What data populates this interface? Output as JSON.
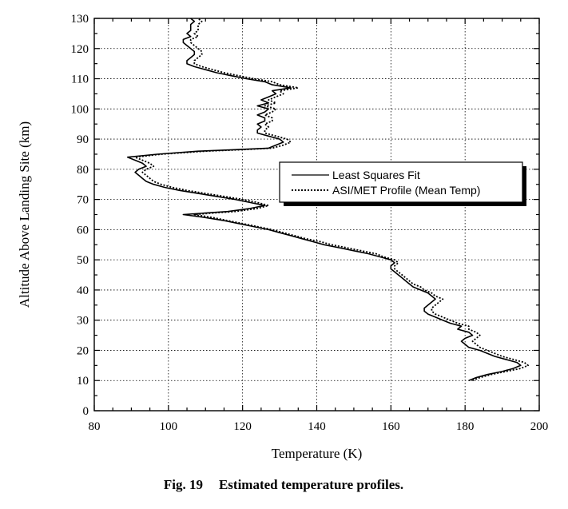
{
  "chart_data": {
    "type": "line",
    "title": "",
    "xlabel": "Temperature (K)",
    "ylabel": "Altitude Above Landing Site (km)",
    "xlim": [
      80,
      200
    ],
    "ylim": [
      0,
      130
    ],
    "x_ticks": [
      80,
      100,
      120,
      140,
      160,
      180,
      200
    ],
    "y_ticks": [
      0,
      10,
      20,
      30,
      40,
      50,
      60,
      70,
      80,
      90,
      100,
      110,
      120,
      130
    ],
    "grid": true,
    "legend_position": "center-right",
    "series": [
      {
        "name": "Least Squares Fit",
        "style": "solid",
        "color": "#000000",
        "points": [
          [
            181,
            10
          ],
          [
            183,
            11
          ],
          [
            186,
            12
          ],
          [
            190,
            13
          ],
          [
            193,
            14
          ],
          [
            195,
            15
          ],
          [
            194,
            16
          ],
          [
            191,
            17
          ],
          [
            188,
            18
          ],
          [
            186,
            19
          ],
          [
            184,
            20
          ],
          [
            181,
            21
          ],
          [
            180,
            22
          ],
          [
            179,
            23
          ],
          [
            180,
            24
          ],
          [
            182,
            25
          ],
          [
            181,
            26
          ],
          [
            178,
            27
          ],
          [
            179,
            28
          ],
          [
            176,
            29
          ],
          [
            174,
            30
          ],
          [
            172,
            31
          ],
          [
            170,
            32
          ],
          [
            169,
            33
          ],
          [
            169,
            34
          ],
          [
            170,
            35
          ],
          [
            171,
            36
          ],
          [
            172,
            37
          ],
          [
            171,
            38
          ],
          [
            170,
            39
          ],
          [
            168,
            40
          ],
          [
            166,
            41
          ],
          [
            165,
            42
          ],
          [
            164,
            43
          ],
          [
            163,
            44
          ],
          [
            162,
            45
          ],
          [
            161,
            46
          ],
          [
            160,
            47
          ],
          [
            160,
            48
          ],
          [
            161,
            49
          ],
          [
            160,
            50
          ],
          [
            157,
            51
          ],
          [
            154,
            52
          ],
          [
            150,
            53
          ],
          [
            146,
            54
          ],
          [
            142,
            55
          ],
          [
            139,
            56
          ],
          [
            136,
            57
          ],
          [
            133,
            58
          ],
          [
            130,
            59
          ],
          [
            127,
            60
          ],
          [
            123,
            61
          ],
          [
            119,
            62
          ],
          [
            115,
            63
          ],
          [
            110,
            64
          ],
          [
            104,
            65
          ],
          [
            110,
            65.5
          ],
          [
            116,
            66
          ],
          [
            122,
            67
          ],
          [
            126,
            68
          ],
          [
            122,
            69
          ],
          [
            118,
            70
          ],
          [
            113,
            71
          ],
          [
            108,
            72
          ],
          [
            103,
            73
          ],
          [
            99,
            74
          ],
          [
            96,
            75
          ],
          [
            94,
            76
          ],
          [
            93,
            77
          ],
          [
            92,
            78
          ],
          [
            91,
            79
          ],
          [
            92,
            80
          ],
          [
            94,
            81
          ],
          [
            93,
            82
          ],
          [
            91,
            83
          ],
          [
            89,
            84
          ],
          [
            97,
            85
          ],
          [
            108,
            86
          ],
          [
            118,
            86.5
          ],
          [
            127,
            87
          ],
          [
            129,
            88
          ],
          [
            131,
            89
          ],
          [
            130,
            90
          ],
          [
            127,
            91
          ],
          [
            124,
            92
          ],
          [
            124,
            93
          ],
          [
            125,
            94
          ],
          [
            124,
            95
          ],
          [
            126,
            96
          ],
          [
            126,
            97
          ],
          [
            124,
            98
          ],
          [
            126,
            99
          ],
          [
            127,
            100
          ],
          [
            124,
            101
          ],
          [
            127,
            102
          ],
          [
            125,
            103
          ],
          [
            127,
            104
          ],
          [
            129,
            105
          ],
          [
            128,
            106
          ],
          [
            133,
            107
          ],
          [
            128,
            108
          ],
          [
            126,
            109
          ],
          [
            121,
            110
          ],
          [
            117,
            111
          ],
          [
            113,
            112
          ],
          [
            110,
            113
          ],
          [
            107,
            114
          ],
          [
            105,
            115
          ],
          [
            105,
            116
          ],
          [
            106,
            117
          ],
          [
            107,
            118
          ],
          [
            107,
            119
          ],
          [
            106,
            120
          ],
          [
            105,
            121
          ],
          [
            104,
            122
          ],
          [
            104,
            123
          ],
          [
            106,
            124
          ],
          [
            105,
            125
          ],
          [
            106,
            126
          ],
          [
            106,
            127
          ],
          [
            106,
            128
          ],
          [
            107,
            129
          ],
          [
            106,
            130
          ]
        ]
      },
      {
        "name": "ASI/MET Profile (Mean Temp)",
        "style": "dotted",
        "color": "#000000",
        "points": [
          [
            182,
            10
          ],
          [
            184,
            11
          ],
          [
            187,
            12
          ],
          [
            191,
            13
          ],
          [
            195,
            14
          ],
          [
            197,
            15
          ],
          [
            196,
            16
          ],
          [
            193,
            17
          ],
          [
            190,
            18
          ],
          [
            188,
            19
          ],
          [
            186,
            20
          ],
          [
            184,
            21
          ],
          [
            183,
            22
          ],
          [
            182,
            23
          ],
          [
            183,
            24
          ],
          [
            184,
            25
          ],
          [
            183,
            26
          ],
          [
            181,
            27
          ],
          [
            181,
            28
          ],
          [
            178,
            29
          ],
          [
            176,
            30
          ],
          [
            174,
            31
          ],
          [
            172,
            32
          ],
          [
            171,
            33
          ],
          [
            171,
            34
          ],
          [
            172,
            35
          ],
          [
            173,
            36
          ],
          [
            174,
            37
          ],
          [
            172,
            38
          ],
          [
            171,
            39
          ],
          [
            169,
            40
          ],
          [
            168,
            41
          ],
          [
            166,
            42
          ],
          [
            165,
            43
          ],
          [
            164,
            44
          ],
          [
            163,
            45
          ],
          [
            162,
            46
          ],
          [
            161,
            47
          ],
          [
            161,
            48
          ],
          [
            162,
            49
          ],
          [
            161,
            50
          ],
          [
            158,
            51
          ],
          [
            156,
            52
          ],
          [
            152,
            53
          ],
          [
            148,
            54
          ],
          [
            144,
            55
          ],
          [
            141,
            56
          ],
          [
            137,
            57
          ],
          [
            134,
            58
          ],
          [
            131,
            59
          ],
          [
            128,
            60
          ],
          [
            124,
            61
          ],
          [
            120,
            62
          ],
          [
            116,
            63
          ],
          [
            112,
            64
          ],
          [
            107,
            65
          ],
          [
            112,
            65.5
          ],
          [
            118,
            66
          ],
          [
            124,
            67
          ],
          [
            127,
            68
          ],
          [
            124,
            69
          ],
          [
            120,
            70
          ],
          [
            115,
            71
          ],
          [
            110,
            72
          ],
          [
            105,
            73
          ],
          [
            101,
            74
          ],
          [
            98,
            75
          ],
          [
            96,
            76
          ],
          [
            95,
            77
          ],
          [
            94,
            78
          ],
          [
            93,
            79
          ],
          [
            94,
            80
          ],
          [
            96,
            81
          ],
          [
            95,
            82
          ],
          [
            93,
            83
          ],
          [
            91,
            84
          ],
          [
            98,
            85
          ],
          [
            110,
            86
          ],
          [
            120,
            86.5
          ],
          [
            128,
            87
          ],
          [
            131,
            88
          ],
          [
            133,
            89
          ],
          [
            132,
            90
          ],
          [
            129,
            91
          ],
          [
            126,
            92
          ],
          [
            126,
            93
          ],
          [
            127,
            94
          ],
          [
            126,
            95
          ],
          [
            128,
            96
          ],
          [
            128,
            97
          ],
          [
            126,
            98
          ],
          [
            128,
            99
          ],
          [
            129,
            100
          ],
          [
            126,
            101
          ],
          [
            129,
            102
          ],
          [
            127,
            103
          ],
          [
            129,
            104
          ],
          [
            131,
            105
          ],
          [
            130,
            106
          ],
          [
            135,
            107
          ],
          [
            130,
            108
          ],
          [
            128,
            109
          ],
          [
            123,
            110
          ],
          [
            119,
            111
          ],
          [
            115,
            112
          ],
          [
            112,
            113
          ],
          [
            109,
            114
          ],
          [
            107,
            115
          ],
          [
            107,
            116
          ],
          [
            108,
            117
          ],
          [
            109,
            118
          ],
          [
            109,
            119
          ],
          [
            108,
            120
          ],
          [
            107,
            121
          ],
          [
            106,
            122
          ],
          [
            106,
            123
          ],
          [
            108,
            124
          ],
          [
            107,
            125
          ],
          [
            108,
            126
          ],
          [
            108,
            127
          ],
          [
            108,
            128
          ],
          [
            109,
            129
          ],
          [
            108,
            130
          ]
        ]
      }
    ]
  },
  "caption": {
    "label": "Fig. 19",
    "text": "Estimated temperature profiles."
  }
}
